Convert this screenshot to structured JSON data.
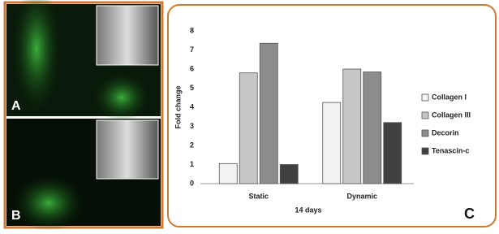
{
  "panels": {
    "a": "A",
    "b": "B",
    "c": "C"
  },
  "chart_data": {
    "type": "bar",
    "categories": [
      "Static",
      "Dynamic"
    ],
    "series": [
      {
        "name": "Collagen I",
        "color": "#f2f2f2",
        "values": [
          1.05,
          4.25
        ]
      },
      {
        "name": "Collagen III",
        "color": "#c6c6c6",
        "values": [
          5.8,
          6.0
        ]
      },
      {
        "name": "Decorin",
        "color": "#8c8c8c",
        "values": [
          7.35,
          5.85
        ]
      },
      {
        "name": "Tenascin-c",
        "color": "#404040",
        "values": [
          1.0,
          3.2
        ]
      }
    ],
    "ylabel": "Fold change",
    "xlabel": "14 days",
    "ylim": [
      0,
      8
    ],
    "yticks": [
      0,
      1,
      2,
      3,
      4,
      5,
      6,
      7,
      8
    ],
    "grid": false,
    "legend": "right"
  }
}
